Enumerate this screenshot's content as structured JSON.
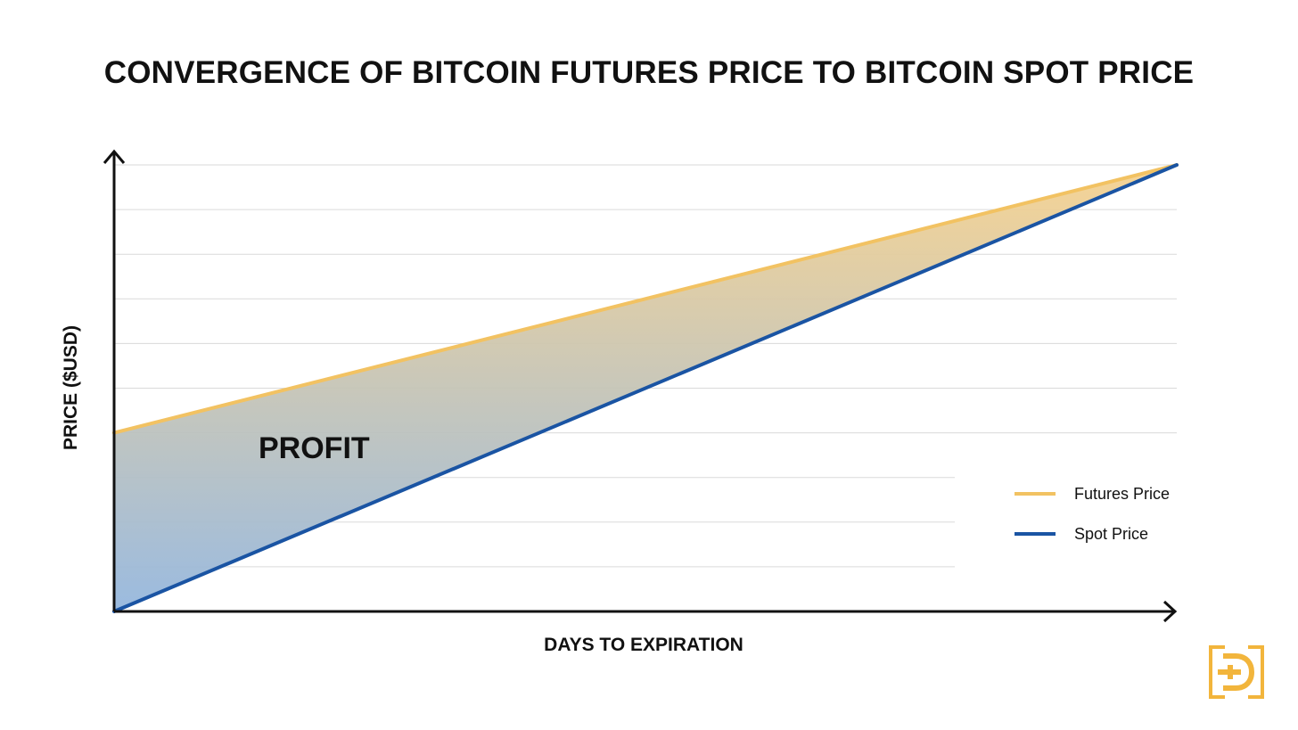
{
  "chart_data": {
    "type": "line",
    "title": "CONVERGENCE OF BITCOIN FUTURES PRICE TO BITCOIN SPOT PRICE",
    "xlabel": "DAYS TO EXPIRATION",
    "ylabel": "PRICE ($USD)",
    "x": [
      0,
      1
    ],
    "series": [
      {
        "name": "Futures Price",
        "values": [
          0.4,
          1.0
        ],
        "color": "#F2C262"
      },
      {
        "name": "Spot Price",
        "values": [
          0.0,
          1.0
        ],
        "color": "#1A54A3"
      }
    ],
    "xlim": [
      0,
      1
    ],
    "ylim": [
      -0.03,
      1.03
    ],
    "gridlines": [
      0.1,
      0.2,
      0.3,
      0.4,
      0.5,
      0.6,
      0.7,
      0.8,
      0.9,
      1.0
    ],
    "grid": true,
    "legend": "bottom-right",
    "annotation": "PROFIT",
    "fill_between_colors": {
      "top": "#F6D28F",
      "bottom": "#95B7DE"
    }
  }
}
